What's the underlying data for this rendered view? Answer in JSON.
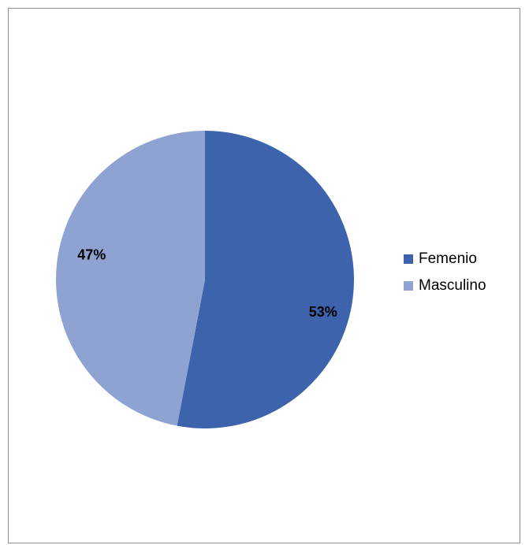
{
  "chart_data": {
    "type": "pie",
    "categories": [
      "Femenio",
      "Masculino"
    ],
    "values": [
      53,
      47
    ],
    "labels": [
      "53%",
      "47%"
    ],
    "colors": [
      "#3c63ac",
      "#8fa3d3"
    ],
    "start_angle_deg": 0,
    "direction": "clockwise",
    "legend_position": "right"
  },
  "legend": {
    "items": [
      {
        "label": "Femenio",
        "color": "#3c63ac"
      },
      {
        "label": "Masculino",
        "color": "#8fa3d3"
      }
    ]
  }
}
